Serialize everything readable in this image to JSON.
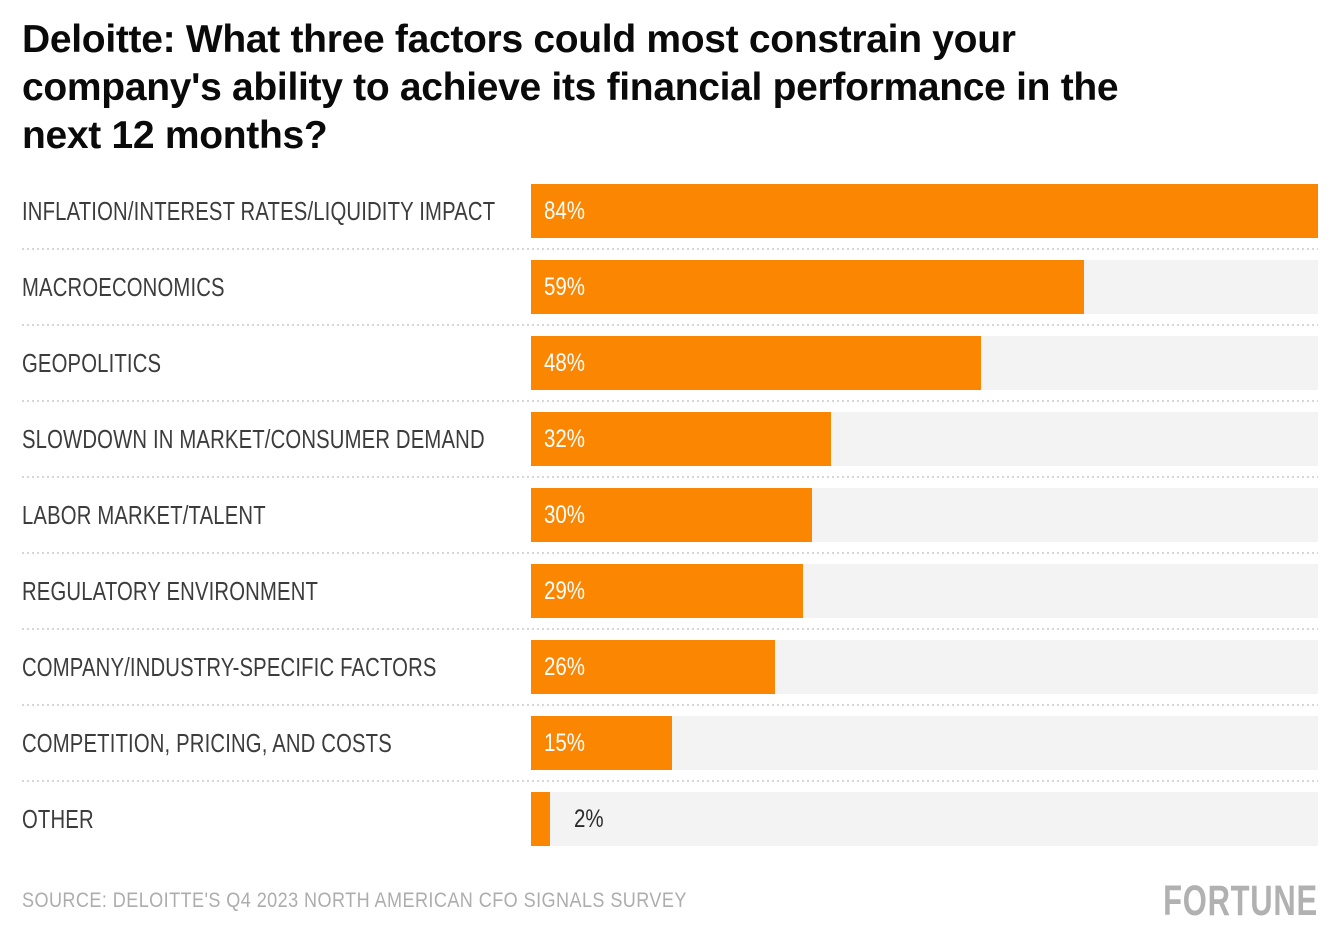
{
  "header": {
    "title_display": "Deloitte: What three factors could most constrain your\ncompany's ability to achieve its financial performance in the\nnext 12 months?"
  },
  "footer": {
    "source": "SOURCE: DELOITTE'S Q4 2023 NORTH AMERICAN CFO SIGNALS SURVEY",
    "brand": "FORTUNE"
  },
  "colors": {
    "bar": "#fb8602",
    "track": "#f3f3f3",
    "separator": "#d7d7d7",
    "title_text": "#0a0a0a",
    "label_text": "#3c3c3c",
    "value_text_light": "#ffffff",
    "value_text_dark": "#2b2b2b",
    "source_text": "#adadad",
    "brand_text": "#b1b1b1"
  },
  "chart_data": {
    "type": "bar",
    "orientation": "horizontal",
    "title": "Deloitte: What three factors could most constrain your company's ability to achieve its financial performance in the next 12 months?",
    "categories": [
      "INFLATION/INTEREST RATES/LIQUIDITY IMPACT",
      "MACROECONOMICS",
      "GEOPOLITICS",
      "SLOWDOWN IN MARKET/CONSUMER DEMAND",
      "LABOR MARKET/TALENT",
      "REGULATORY ENVIRONMENT",
      "COMPANY/INDUSTRY-SPECIFIC FACTORS",
      "COMPETITION, PRICING, AND COSTS",
      "OTHER"
    ],
    "values": [
      84,
      59,
      48,
      32,
      30,
      29,
      26,
      15,
      2
    ],
    "value_labels": [
      "84%",
      "59%",
      "48%",
      "32%",
      "30%",
      "29%",
      "26%",
      "15%",
      "2%"
    ],
    "value_suffix": "%",
    "xlim": [
      0,
      84
    ],
    "grid": false,
    "legend": false,
    "row_separators": "dotted"
  }
}
